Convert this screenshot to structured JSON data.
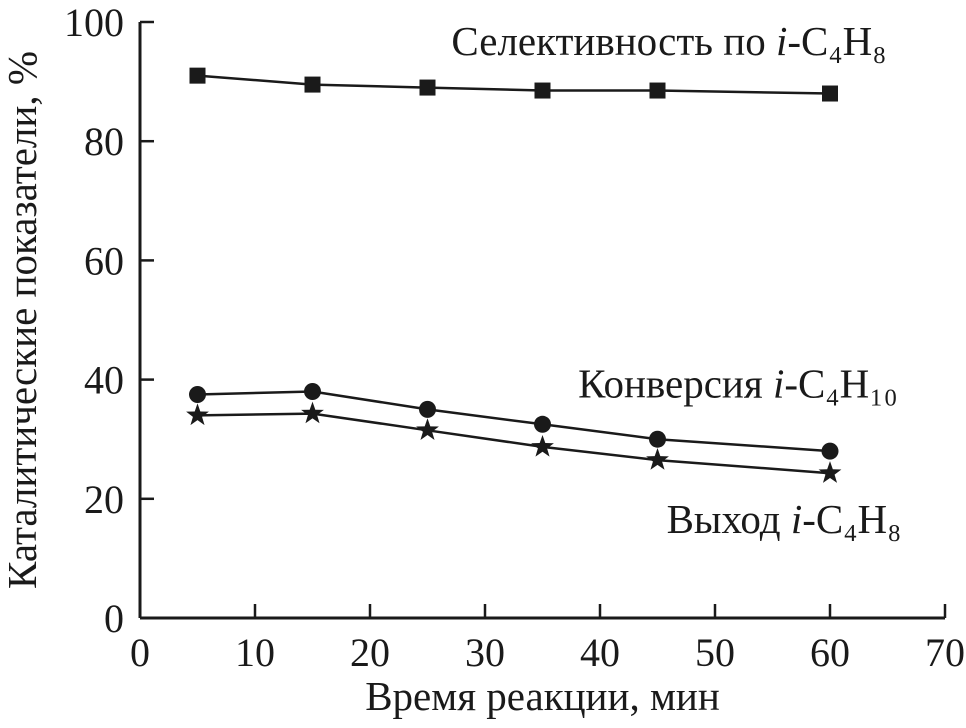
{
  "chart_data": {
    "type": "line",
    "title": "",
    "xlabel": "Время реакции, мин",
    "ylabel": "Каталитические показатели, %",
    "xlim": [
      0,
      70
    ],
    "ylim": [
      0,
      100
    ],
    "xticks": [
      0,
      10,
      20,
      30,
      40,
      50,
      60,
      70
    ],
    "yticks": [
      0,
      20,
      40,
      60,
      80,
      100
    ],
    "grid": false,
    "legend_position": "inline-annotations",
    "color": "#1a1a1a",
    "x": [
      5,
      15,
      25,
      35,
      45,
      60
    ],
    "series": [
      {
        "name": "Селективность по i-C₄H₈",
        "marker": "square",
        "values": [
          91,
          89.5,
          89,
          88.5,
          88.5,
          88
        ]
      },
      {
        "name": "Конверсия i-C₄H₁₀",
        "marker": "circle",
        "values": [
          37.5,
          38,
          35,
          32.5,
          30,
          28
        ]
      },
      {
        "name": "Выход i-C₄H₈",
        "marker": "star",
        "values": [
          34,
          34.3,
          31.5,
          28.7,
          26.5,
          24.3
        ]
      }
    ],
    "annotations": [
      {
        "text": "Селективность по i-C₄H₈",
        "x": 46,
        "y": 94.5,
        "anchor": "middle"
      },
      {
        "text": "Конверсия i-C₄H₁₀",
        "x": 52,
        "y": 37,
        "anchor": "middle"
      },
      {
        "text": "Выход i-C₄H₈",
        "x": 56,
        "y": 14.3,
        "anchor": "middle"
      }
    ]
  }
}
